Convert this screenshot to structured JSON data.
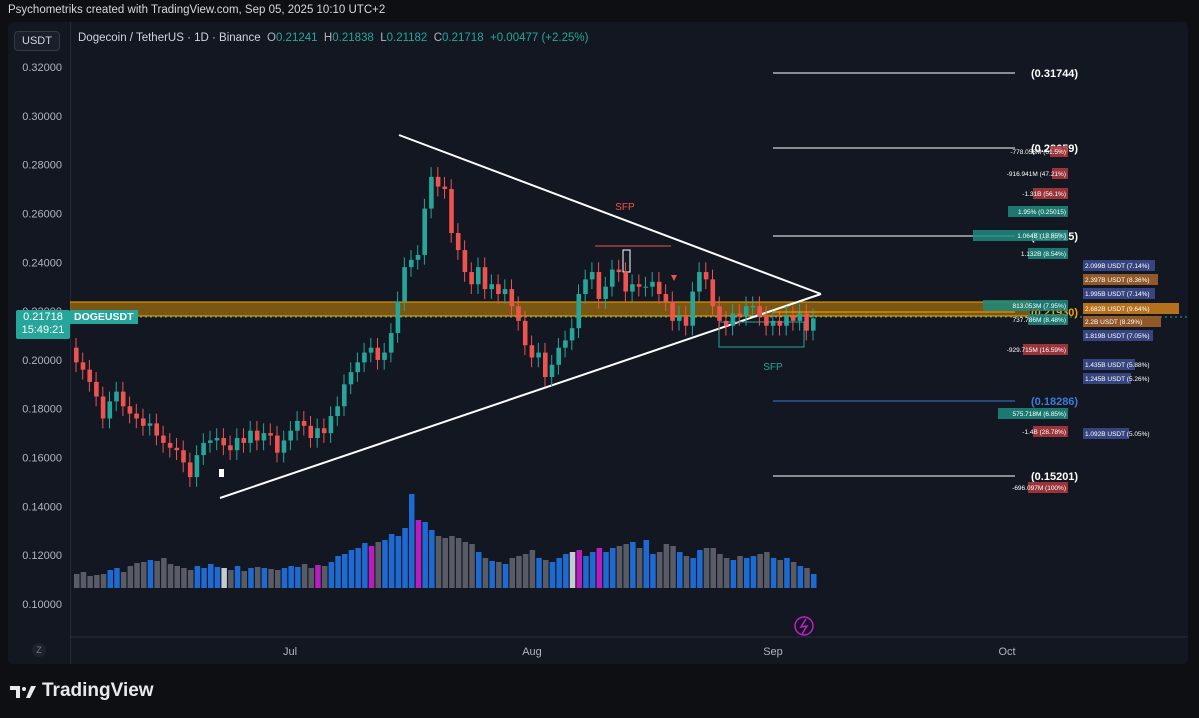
{
  "caption": "Psychometriks created with TradingView.com, Sep 05, 2025 10:10 UTC+2",
  "currency_badge": "USDT",
  "legend": {
    "symbol": "Dogecoin / TetherUS · 1D · Binance",
    "o_label": "O",
    "o": "0.21241",
    "h_label": "H",
    "h": "0.21838",
    "l_label": "L",
    "l": "0.21182",
    "c_label": "C",
    "c": "0.21718",
    "change": "+0.00477 (+2.25%)"
  },
  "price_tag": {
    "price": "0.21718",
    "countdown": "15:49:21",
    "symbol": "DOGEUSDT"
  },
  "y_axis_labels": [
    "0.32000",
    "0.30000",
    "0.28000",
    "0.26000",
    "0.24000",
    "0.22000",
    "0.20000",
    "0.18000",
    "0.16000",
    "0.14000",
    "0.12000",
    "0.10000"
  ],
  "x_axis_labels": [
    "Jul",
    "Aug",
    "Sep",
    "Oct"
  ],
  "annotations": {
    "sfp_top": "SFP",
    "sfp_bottom": "SFP"
  },
  "level_labels": [
    "(0.31744)",
    "(0.28659)",
    "(0.25015)",
    "(0.21930)",
    "(0.18286)",
    "(0.15201)"
  ],
  "bid_ask_left": [
    "-778.056M (61.5%)",
    "-916.941M (47.21%)",
    "-1.31B (56.1%)",
    "1.95% (0.25015)",
    "1.064B (18.85%)",
    "1.132B (8.54%)",
    "813.053M (7.95%)",
    "737.786M (8.48%)",
    "-929.715M (16.59%)",
    "575.718M (6.85%)",
    "-1.4B (28.78%)",
    "-696.097M (100%)"
  ],
  "bid_ask_right": [
    "2.099B USDT (7.14%)",
    "2.397B USDT (8.36%)",
    "1.995B USDT (7.14%)",
    "2.682B USDT (9.64%)",
    "2.2B USDT (8.29%)",
    "1.819B USDT (7.05%)",
    "1.435B USDT (5.88%)",
    "1.245B USDT (5.26%)",
    "1.092B USDT (5.05%)"
  ],
  "z_button": "Z",
  "brand": "TradingView",
  "colors": {
    "up": "#26a69a",
    "down": "#ef5350",
    "volume_up": "#1e6fdc",
    "volume_down": "#5d606b",
    "highlight": "#c21ec8",
    "band": "#f7a600",
    "panel": "#131722"
  }
}
